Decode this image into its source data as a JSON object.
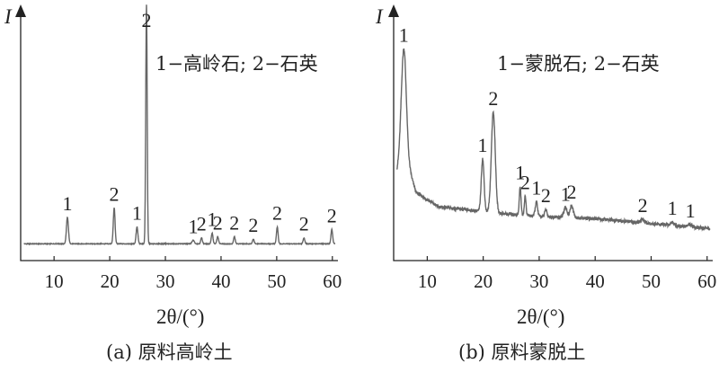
{
  "chart_data": [
    {
      "type": "line",
      "caption": "(a) 原料高岭土",
      "legend": "1−高岭石; 2−石英",
      "xlabel": "2θ/(°)",
      "ylabel": "I",
      "xlim": [
        4,
        61
      ],
      "xticks": [
        "10",
        "20",
        "30",
        "40",
        "50",
        "60"
      ],
      "ylim": [
        0,
        100
      ],
      "grid": false,
      "color": "#666666",
      "baseline": 2.5,
      "peaks": [
        {
          "x": 12.4,
          "y": 11,
          "w": 0.18,
          "label": "1"
        },
        {
          "x": 20.8,
          "y": 15,
          "w": 0.16,
          "label": "2"
        },
        {
          "x": 24.9,
          "y": 7,
          "w": 0.16,
          "label": "1"
        },
        {
          "x": 26.6,
          "y": 100,
          "w": 0.13,
          "label": "2"
        },
        {
          "x": 35.0,
          "y": 1.5,
          "w": 0.2,
          "label": "1"
        },
        {
          "x": 36.5,
          "y": 2.5,
          "w": 0.15,
          "label": "2"
        },
        {
          "x": 38.4,
          "y": 4.5,
          "w": 0.15,
          "label": "1"
        },
        {
          "x": 39.4,
          "y": 3,
          "w": 0.15,
          "label": "2"
        },
        {
          "x": 42.4,
          "y": 3,
          "w": 0.15,
          "label": "2"
        },
        {
          "x": 45.8,
          "y": 2,
          "w": 0.15,
          "label": "2"
        },
        {
          "x": 50.1,
          "y": 7,
          "w": 0.15,
          "label": "2"
        },
        {
          "x": 54.9,
          "y": 2.5,
          "w": 0.15,
          "label": "2"
        },
        {
          "x": 59.9,
          "y": 6,
          "w": 0.15,
          "label": "2"
        }
      ]
    },
    {
      "type": "line",
      "caption": "(b) 原料蒙脱土",
      "legend": "1−蒙脱石; 2−石英",
      "xlabel": "2θ/(°)",
      "ylabel": "I",
      "xlim": [
        4,
        61
      ],
      "xticks": [
        "10",
        "20",
        "30",
        "40",
        "50",
        "60"
      ],
      "ylim": [
        0,
        100
      ],
      "grid": false,
      "color": "#666666",
      "background": {
        "points": [
          [
            4,
            30
          ],
          [
            6,
            40
          ],
          [
            8,
            24
          ],
          [
            12,
            18
          ],
          [
            16,
            17
          ],
          [
            20,
            16
          ],
          [
            24,
            15
          ],
          [
            30,
            14
          ],
          [
            40,
            13
          ],
          [
            50,
            11
          ],
          [
            60,
            9
          ]
        ]
      },
      "peaks": [
        {
          "x": 5.8,
          "y": 45,
          "w": 0.45,
          "label": "1"
        },
        {
          "x": 19.9,
          "y": 22,
          "w": 0.25,
          "label": "1"
        },
        {
          "x": 21.8,
          "y": 42,
          "w": 0.35,
          "label": "2"
        },
        {
          "x": 26.6,
          "y": 12,
          "w": 0.15,
          "label": "1"
        },
        {
          "x": 27.5,
          "y": 8,
          "w": 0.15,
          "label": "2"
        },
        {
          "x": 29.5,
          "y": 6,
          "w": 0.2,
          "label": "1"
        },
        {
          "x": 31.2,
          "y": 3,
          "w": 0.2,
          "label": "2"
        },
        {
          "x": 34.7,
          "y": 4,
          "w": 0.3,
          "label": "1"
        },
        {
          "x": 35.8,
          "y": 5,
          "w": 0.3,
          "label": "2"
        },
        {
          "x": 48.5,
          "y": 1.5,
          "w": 0.3,
          "label": "2"
        },
        {
          "x": 53.8,
          "y": 1.5,
          "w": 0.3,
          "label": "1"
        },
        {
          "x": 57.0,
          "y": 1,
          "w": 0.3,
          "label": "1"
        }
      ]
    }
  ]
}
